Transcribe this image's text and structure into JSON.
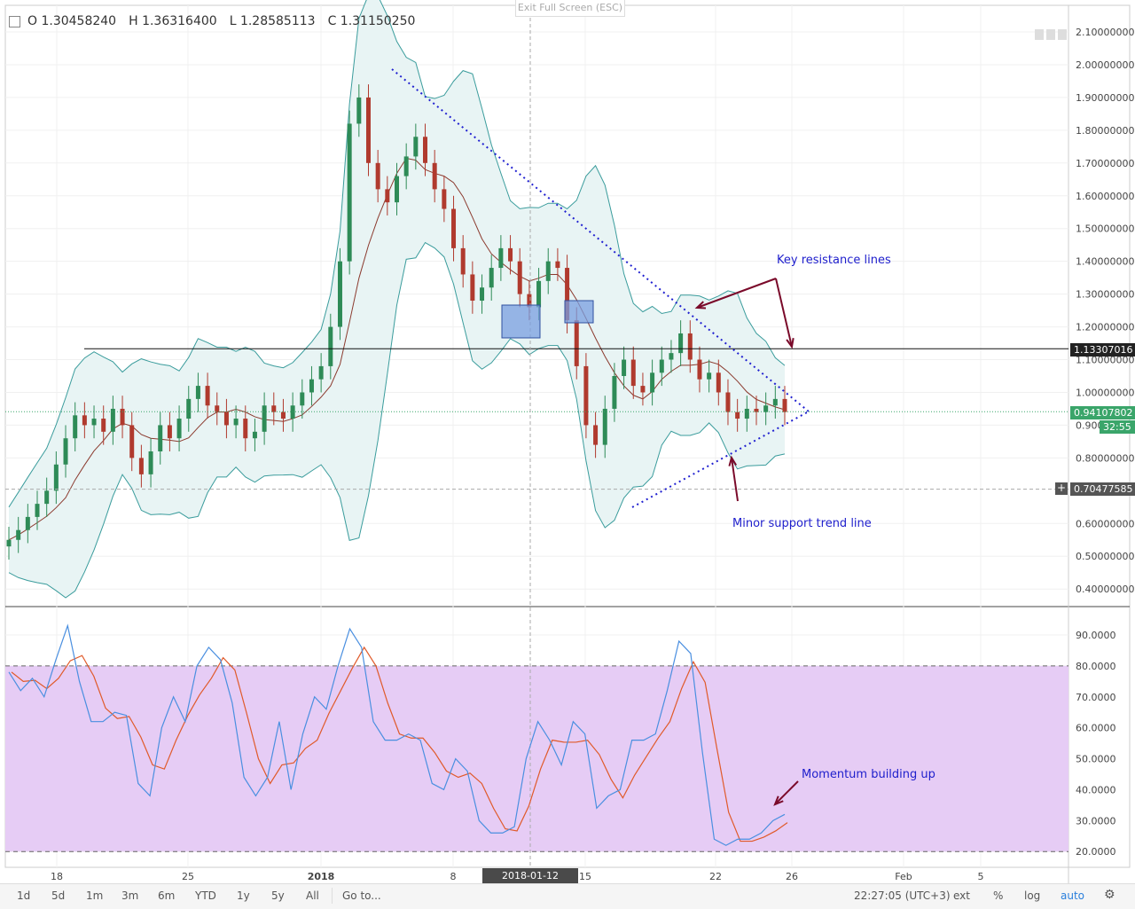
{
  "header": {
    "open": "O 1.30458240",
    "high": "H 1.36316400",
    "low": "L 1.28585113",
    "close": "C 1.31150250",
    "exit_fullscreen": "Exit Full Screen (ESC)"
  },
  "annotations": {
    "resistance": "Key resistance lines",
    "support": "Minor support trend line",
    "momentum": "Momentum building up"
  },
  "labels": {
    "resistance_level": "1.13307016",
    "current_price": "0.94107802",
    "countdown": "32:55",
    "support_level": "0.70477585",
    "crosshair_time": "2018-01-12 07:00:00"
  },
  "price_axis": [
    "2.10000000",
    "2.00000000",
    "1.90000000",
    "1.80000000",
    "1.70000000",
    "1.60000000",
    "1.50000000",
    "1.40000000",
    "1.30000000",
    "1.20000000",
    "1.10000000",
    "1.00000000",
    "0.90000000",
    "0.80000000",
    "0.60000000",
    "0.50000000",
    "0.40000000"
  ],
  "osc_axis": [
    "90.0000",
    "80.0000",
    "70.0000",
    "60.0000",
    "50.0000",
    "40.0000",
    "30.0000",
    "20.0000"
  ],
  "time_axis": [
    "18",
    "25",
    "2018",
    "8",
    "15",
    "22",
    "26",
    "Feb",
    "5"
  ],
  "bottom_bar": {
    "timeframes": [
      "1d",
      "5d",
      "1m",
      "3m",
      "6m",
      "YTD",
      "1y",
      "5y",
      "All"
    ],
    "goto": "Go to...",
    "clock": "22:27:05 (UTC+3)",
    "ext": "ext",
    "percent": "%",
    "log": "log",
    "auto": "auto"
  },
  "colors": {
    "up": "#2e8b57",
    "down": "#b03a2e",
    "band": "#3a9c9c",
    "band_fill": "#e8f4f4",
    "ma": "#8b3a2e",
    "trend": "#2020d0",
    "arrow": "#7a0a2a",
    "osc_fill": "#e6ccf5",
    "k_line": "#4a8fe0",
    "d_line": "#e05a2a",
    "box": "#7a9fe0"
  },
  "chart_data": {
    "type": "candlestick",
    "title": "",
    "close_series": [
      0.55,
      0.58,
      0.62,
      0.66,
      0.7,
      0.78,
      0.86,
      0.93,
      0.9,
      0.92,
      0.88,
      0.95,
      0.9,
      0.8,
      0.75,
      0.82,
      0.9,
      0.86,
      0.92,
      0.98,
      1.02,
      0.96,
      0.94,
      0.9,
      0.92,
      0.86,
      0.88,
      0.96,
      0.94,
      0.92,
      0.96,
      1.0,
      1.04,
      1.08,
      1.2,
      1.4,
      1.82,
      1.9,
      1.7,
      1.62,
      1.58,
      1.66,
      1.72,
      1.78,
      1.7,
      1.62,
      1.56,
      1.44,
      1.36,
      1.28,
      1.32,
      1.38,
      1.44,
      1.4,
      1.3,
      1.26,
      1.34,
      1.4,
      1.38,
      1.22,
      1.08,
      0.9,
      0.84,
      0.95,
      1.05,
      1.1,
      1.02,
      1.0,
      1.06,
      1.1,
      1.12,
      1.18,
      1.1,
      1.04,
      1.06,
      1.0,
      0.94,
      0.92,
      0.95,
      0.94,
      0.96,
      0.98,
      0.94
    ],
    "stochastic_k": [
      78,
      72,
      76,
      70,
      82,
      93,
      75,
      62,
      62,
      65,
      64,
      42,
      38,
      60,
      70,
      62,
      80,
      86,
      82,
      68,
      44,
      38,
      44,
      62,
      40,
      58,
      70,
      66,
      80,
      92,
      86,
      62,
      56,
      56,
      58,
      56,
      42,
      40,
      50,
      46,
      30,
      26,
      26,
      28,
      50,
      62,
      56,
      48,
      62,
      58,
      34,
      38,
      40,
      56,
      56,
      58,
      72,
      88,
      84,
      52,
      24,
      22,
      24,
      24,
      26,
      30,
      32
    ],
    "osc_range": [
      20,
      80
    ],
    "resistance_level": 1.13307016,
    "support_level": 0.70477585,
    "current_price": 0.94107802
  }
}
